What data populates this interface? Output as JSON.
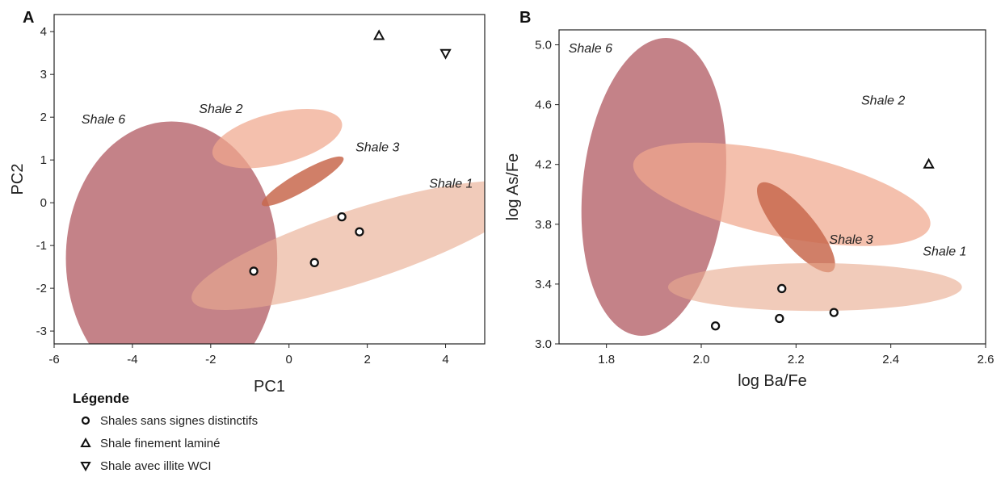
{
  "chart_data": [
    {
      "type": "scatter",
      "panel_label": "A",
      "xlabel": "PC1",
      "ylabel": "PC2",
      "xlim": [
        -6,
        5
      ],
      "ylim": [
        -3.3,
        4.4
      ],
      "xticks": [
        -6,
        -4,
        -2,
        0,
        2,
        4
      ],
      "yticks": [
        -3,
        -2,
        -1,
        0,
        1,
        2,
        3,
        4
      ],
      "grid": false,
      "regions": [
        {
          "name": "Shale 6",
          "cx": -3,
          "cy": -1.3,
          "rx": 2.7,
          "ry": 3.2,
          "angle": 0,
          "color": "#b7676e",
          "opacity": 0.82,
          "label_x": -5.3,
          "label_y": 1.85,
          "label_anchor": "start"
        },
        {
          "name": "Shale 2",
          "cx": -0.3,
          "cy": 1.5,
          "rx": 1.7,
          "ry": 0.6,
          "angle": 14,
          "color": "#f0a88e",
          "opacity": 0.72,
          "label_x": -2.3,
          "label_y": 2.1,
          "label_anchor": "start"
        },
        {
          "name": "Shale 3",
          "cx": 0.35,
          "cy": 0.5,
          "rx": 1.2,
          "ry": 0.22,
          "angle": 30,
          "color": "#c8694d",
          "opacity": 0.85,
          "label_x": 1.7,
          "label_y": 1.2,
          "label_anchor": "start"
        },
        {
          "name": "Shale 1",
          "cx": 1.8,
          "cy": -1.0,
          "rx": 4.5,
          "ry": 0.85,
          "angle": 18,
          "color": "#e9ab90",
          "opacity": 0.62,
          "label_x": 4.7,
          "label_y": 0.35,
          "label_anchor": "end"
        }
      ],
      "points": [
        {
          "x": -0.9,
          "y": -1.6,
          "marker": "circle"
        },
        {
          "x": 0.65,
          "y": -1.4,
          "marker": "circle"
        },
        {
          "x": 1.35,
          "y": -0.33,
          "marker": "circle"
        },
        {
          "x": 1.8,
          "y": -0.68,
          "marker": "circle"
        },
        {
          "x": 2.3,
          "y": 3.9,
          "marker": "triangle-up"
        },
        {
          "x": 4.0,
          "y": 3.5,
          "marker": "triangle-down"
        }
      ]
    },
    {
      "type": "scatter",
      "panel_label": "B",
      "xlabel": "log Ba/Fe",
      "ylabel": "log As/Fe",
      "xlim": [
        1.7,
        2.6
      ],
      "ylim": [
        3.0,
        5.1
      ],
      "xticks": [
        "1.8",
        "2.0",
        "2.2",
        "2.4",
        "2.6"
      ],
      "yticks": [
        "3.0",
        "3.4",
        "3.8",
        "4.2",
        "4.6",
        "5.0"
      ],
      "grid": false,
      "regions": [
        {
          "name": "Shale 6",
          "cx": 1.9,
          "cy": 4.05,
          "rx": 0.15,
          "ry": 1.0,
          "angle": -6,
          "color": "#b7676e",
          "opacity": 0.82,
          "label_x": 1.72,
          "label_y": 4.95,
          "label_anchor": "start"
        },
        {
          "name": "Shale 2",
          "cx": 2.17,
          "cy": 4.0,
          "rx": 0.32,
          "ry": 0.28,
          "angle": -12,
          "color": "#f0a88e",
          "opacity": 0.72,
          "label_x": 2.43,
          "label_y": 4.6,
          "label_anchor": "end"
        },
        {
          "name": "Shale 3",
          "cx": 2.2,
          "cy": 3.78,
          "rx": 0.12,
          "ry": 0.12,
          "angle": -50,
          "color": "#c8694d",
          "opacity": 0.85,
          "label_x": 2.27,
          "label_y": 3.67,
          "label_anchor": "start"
        },
        {
          "name": "Shale 1",
          "cx": 2.24,
          "cy": 3.38,
          "rx": 0.31,
          "ry": 0.16,
          "angle": 0,
          "color": "#e9ab90",
          "opacity": 0.62,
          "label_x": 2.56,
          "label_y": 3.59,
          "label_anchor": "end"
        }
      ],
      "points": [
        {
          "x": 2.03,
          "y": 3.12,
          "marker": "circle"
        },
        {
          "x": 2.165,
          "y": 3.17,
          "marker": "circle"
        },
        {
          "x": 2.17,
          "y": 3.37,
          "marker": "circle"
        },
        {
          "x": 2.28,
          "y": 3.21,
          "marker": "circle"
        },
        {
          "x": 2.48,
          "y": 4.2,
          "marker": "triangle-up"
        }
      ]
    }
  ],
  "legend": {
    "title": "Légende",
    "items": [
      {
        "label": "Shales sans signes distinctifs",
        "marker": "circle"
      },
      {
        "label": "Shale finement laminé",
        "marker": "triangle-up"
      },
      {
        "label": "Shale avec illite WCI",
        "marker": "triangle-down"
      }
    ]
  }
}
